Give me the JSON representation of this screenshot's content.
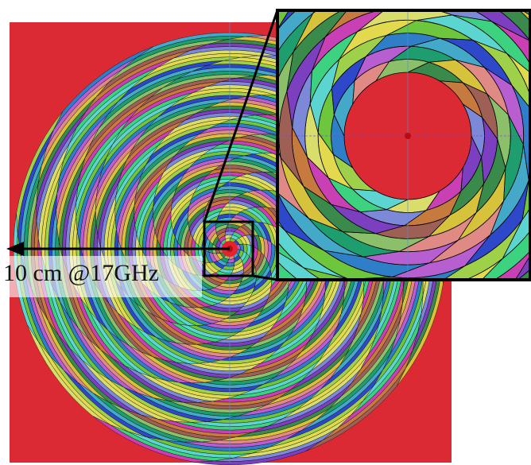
{
  "annotation": {
    "label": "10 cm @17GHz"
  },
  "colors": {
    "background": "#dc2a35",
    "outline": "#000000",
    "axis_line": "#5a8fd0",
    "center_point": "#b80c10",
    "ring_palette": [
      "#2f7fc8",
      "#3dd27f",
      "#9e5f55",
      "#44a8c8",
      "#e2d94f",
      "#7b3fbf",
      "#e08a86",
      "#6ec63c",
      "#c93fb4",
      "#8bbf6a",
      "#2d49c9",
      "#d8dd6c",
      "#3a8a4c",
      "#b75ed1",
      "#5cd4d0",
      "#c77a3d",
      "#1e9e6e",
      "#9fd04a",
      "#7c88d8",
      "#d6c23b"
    ]
  },
  "icons": {
    "arrow": "left-arrow-icon",
    "zoom_box": "zoom-region-frame"
  }
}
